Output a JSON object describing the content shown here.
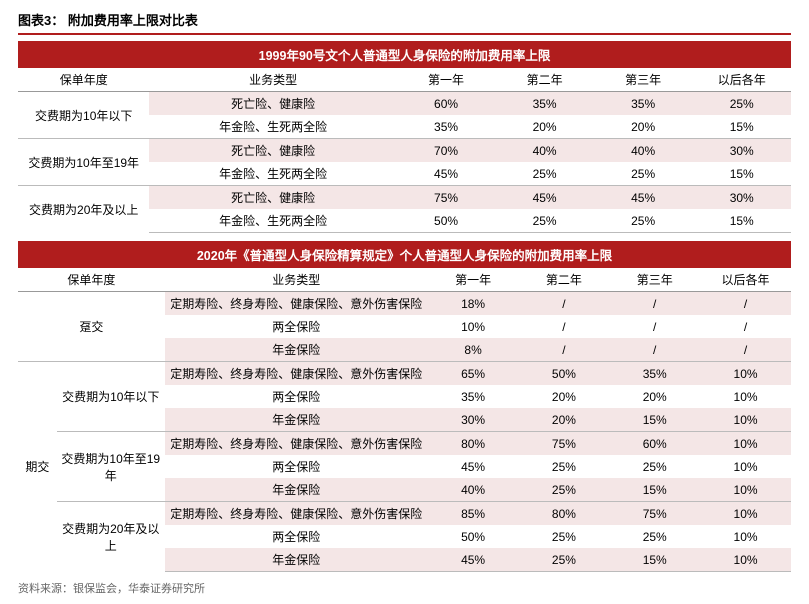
{
  "figure_label": "图表3：  附加费用率上限对比表",
  "source": "资料来源：银保监会，华泰证券研究所",
  "colors": {
    "header_bg": "#b01d1d",
    "header_fg": "#ffffff",
    "shade_bg": "#f4e6e6",
    "border": "#bbbbbb",
    "title_underline": "#b01d1d"
  },
  "table1": {
    "banner": "1999年90号文个人普通型人身保险的附加费用率上限",
    "columns": [
      "保单年度",
      "业务类型",
      "第一年",
      "第二年",
      "第三年",
      "以后各年"
    ],
    "groups": [
      {
        "label": "交费期为10年以下",
        "rows": [
          {
            "biz": "死亡险、健康险",
            "v": [
              "60%",
              "35%",
              "35%",
              "25%"
            ]
          },
          {
            "biz": "年金险、生死两全险",
            "v": [
              "35%",
              "20%",
              "20%",
              "15%"
            ]
          }
        ]
      },
      {
        "label": "交费期为10年至19年",
        "rows": [
          {
            "biz": "死亡险、健康险",
            "v": [
              "70%",
              "40%",
              "40%",
              "30%"
            ]
          },
          {
            "biz": "年金险、生死两全险",
            "v": [
              "45%",
              "25%",
              "25%",
              "15%"
            ]
          }
        ]
      },
      {
        "label": "交费期为20年及以上",
        "rows": [
          {
            "biz": "死亡险、健康险",
            "v": [
              "75%",
              "45%",
              "45%",
              "30%"
            ]
          },
          {
            "biz": "年金险、生死两全险",
            "v": [
              "50%",
              "25%",
              "25%",
              "15%"
            ]
          }
        ]
      }
    ]
  },
  "table2": {
    "banner": "2020年《普通型人身保险精算规定》个人普通型人身保险的附加费用率上限",
    "columns": [
      "保单年度",
      "业务类型",
      "第一年",
      "第二年",
      "第三年",
      "以后各年"
    ],
    "outer": [
      {
        "label": "趸交",
        "groups": [
          {
            "label": null,
            "rows": [
              {
                "biz": "定期寿险、终身寿险、健康保险、意外伤害保险",
                "v": [
                  "18%",
                  "/",
                  "/",
                  "/"
                ]
              },
              {
                "biz": "两全保险",
                "v": [
                  "10%",
                  "/",
                  "/",
                  "/"
                ]
              },
              {
                "biz": "年金保险",
                "v": [
                  "8%",
                  "/",
                  "/",
                  "/"
                ]
              }
            ]
          }
        ]
      },
      {
        "label": "期交",
        "groups": [
          {
            "label": "交费期为10年以下",
            "rows": [
              {
                "biz": "定期寿险、终身寿险、健康保险、意外伤害保险",
                "v": [
                  "65%",
                  "50%",
                  "35%",
                  "10%"
                ]
              },
              {
                "biz": "两全保险",
                "v": [
                  "35%",
                  "20%",
                  "20%",
                  "10%"
                ]
              },
              {
                "biz": "年金保险",
                "v": [
                  "30%",
                  "20%",
                  "15%",
                  "10%"
                ]
              }
            ]
          },
          {
            "label": "交费期为10年至19年",
            "rows": [
              {
                "biz": "定期寿险、终身寿险、健康保险、意外伤害保险",
                "v": [
                  "80%",
                  "75%",
                  "60%",
                  "10%"
                ]
              },
              {
                "biz": "两全保险",
                "v": [
                  "45%",
                  "25%",
                  "25%",
                  "10%"
                ]
              },
              {
                "biz": "年金保险",
                "v": [
                  "40%",
                  "25%",
                  "15%",
                  "10%"
                ]
              }
            ]
          },
          {
            "label": "交费期为20年及以上",
            "rows": [
              {
                "biz": "定期寿险、终身寿险、健康保险、意外伤害保险",
                "v": [
                  "85%",
                  "80%",
                  "75%",
                  "10%"
                ]
              },
              {
                "biz": "两全保险",
                "v": [
                  "50%",
                  "25%",
                  "25%",
                  "10%"
                ]
              },
              {
                "biz": "年金保险",
                "v": [
                  "45%",
                  "25%",
                  "15%",
                  "10%"
                ]
              }
            ]
          }
        ]
      }
    ]
  }
}
